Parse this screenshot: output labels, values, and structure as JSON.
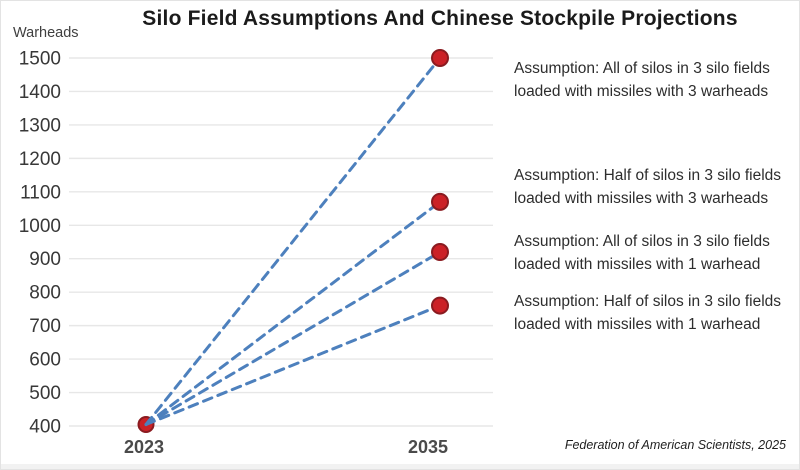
{
  "title": "Silo Field Assumptions And Chinese Stockpile Projections",
  "footer": "Federation of American Scientists, 2025",
  "annotations": [
    {
      "line1": "Assumption: All of silos in 3 silo fields",
      "line2": "loaded with missiles with 3 warheads"
    },
    {
      "line1": "Assumption: Half of silos in 3 silo fields",
      "line2": "loaded with missiles with 3 warheads"
    },
    {
      "line1": "Assumption: All of silos in 3 silo fields",
      "line2": "loaded with missiles with 1 warhead"
    },
    {
      "line1": "Assumption: Half of silos in 3 silo fields",
      "line2": "loaded with missiles with 1 warhead"
    }
  ],
  "chart_data": {
    "type": "line",
    "title": "Silo Field Assumptions And Chinese Stockpile Projections",
    "ylabel": "Warheads",
    "xlabel": "",
    "x_labels": [
      "2023",
      "2035"
    ],
    "ylim": [
      400,
      1500
    ],
    "ytick_step": 100,
    "grid": true,
    "line_style": "dashed",
    "series": [
      {
        "label": "Assumption: All of silos in 3 silo fields loaded with missiles with 3 warheads",
        "values": [
          400,
          1500
        ]
      },
      {
        "label": "Assumption: Half of silos in 3 silo fields loaded with missiles with 3 warheads",
        "values": [
          400,
          1070
        ]
      },
      {
        "label": "Assumption: All of silos in 3 silo fields loaded with missiles with 1 warhead",
        "values": [
          400,
          920
        ]
      },
      {
        "label": "Assumption: Half of silos in 3 silo fields loaded with missiles with 1 warhead",
        "values": [
          400,
          760
        ]
      }
    ],
    "colors": {
      "line": "#4d80bd",
      "dot_fill": "#cb2127",
      "dot_stroke": "#8a1b20",
      "grid": "#e7e7e7",
      "tick_text": "#383838",
      "x_tick_text": "#4a4a4a"
    }
  }
}
